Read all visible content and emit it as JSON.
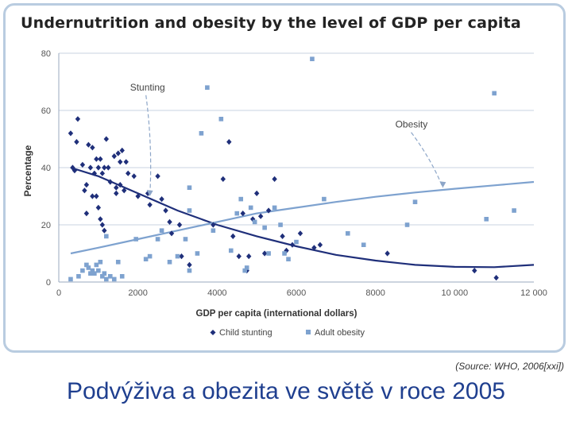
{
  "page": {
    "source_text": "(Source: WHO, 2006[xxi])",
    "caption": "Podvýživa a obezita ve světě v roce 2005"
  },
  "chart_data": {
    "type": "scatter",
    "title": "Undernutrition and obesity by the level of GDP per capita",
    "xlabel": "GDP per capita (international dollars)",
    "ylabel": "Percentage",
    "xlim": [
      0,
      12000
    ],
    "ylim": [
      0,
      80
    ],
    "x_ticks": [
      0,
      2000,
      4000,
      6000,
      8000,
      10000,
      12000
    ],
    "x_tick_labels": [
      "0",
      "2000",
      "4000",
      "6000",
      "8000",
      "10 000",
      "12 000"
    ],
    "y_ticks": [
      0,
      20,
      40,
      60,
      80
    ],
    "y_tick_labels": [
      "0",
      "20",
      "40",
      "60",
      "80"
    ],
    "grid": "horizontal",
    "legend_position": "bottom",
    "colors": {
      "stunting": "#1f2f7a",
      "obesity": "#7ea2cf",
      "grid": "#c8d3e2",
      "axis": "#9aa8bf"
    },
    "annotations": [
      {
        "text": "Stunting",
        "label_at": [
          1800,
          67
        ],
        "arrow_to": [
          2300,
          30
        ]
      },
      {
        "text": "Obesity",
        "label_at": [
          8500,
          54
        ],
        "arrow_to": [
          9700,
          33
        ]
      }
    ],
    "series": [
      {
        "name": "Child stunting",
        "marker": "diamond",
        "points": [
          [
            300,
            52
          ],
          [
            480,
            57
          ],
          [
            450,
            49
          ],
          [
            350,
            40
          ],
          [
            400,
            39
          ],
          [
            600,
            41
          ],
          [
            700,
            34
          ],
          [
            650,
            32
          ],
          [
            800,
            40
          ],
          [
            750,
            48
          ],
          [
            850,
            47
          ],
          [
            900,
            38
          ],
          [
            950,
            43
          ],
          [
            1000,
            40
          ],
          [
            1050,
            43
          ],
          [
            1100,
            38
          ],
          [
            1150,
            40
          ],
          [
            1250,
            40
          ],
          [
            1200,
            50
          ],
          [
            1300,
            35
          ],
          [
            700,
            24
          ],
          [
            850,
            30
          ],
          [
            950,
            30
          ],
          [
            1000,
            26
          ],
          [
            1050,
            22
          ],
          [
            1100,
            20
          ],
          [
            1150,
            18
          ],
          [
            1400,
            44
          ],
          [
            1500,
            45
          ],
          [
            1550,
            42
          ],
          [
            1600,
            46
          ],
          [
            1700,
            42
          ],
          [
            1450,
            33
          ],
          [
            1550,
            34
          ],
          [
            1650,
            32
          ],
          [
            1750,
            38
          ],
          [
            1450,
            31
          ],
          [
            1900,
            37
          ],
          [
            2000,
            30
          ],
          [
            2250,
            31
          ],
          [
            2300,
            27
          ],
          [
            2500,
            37
          ],
          [
            2600,
            29
          ],
          [
            2700,
            25
          ],
          [
            2800,
            21
          ],
          [
            2850,
            17
          ],
          [
            3050,
            20
          ],
          [
            3100,
            9
          ],
          [
            3300,
            6
          ],
          [
            3900,
            20
          ],
          [
            4150,
            36
          ],
          [
            4300,
            49
          ],
          [
            4400,
            16
          ],
          [
            4550,
            9
          ],
          [
            4650,
            24
          ],
          [
            4750,
            4
          ],
          [
            4800,
            9
          ],
          [
            4900,
            22
          ],
          [
            5000,
            31
          ],
          [
            5100,
            23
          ],
          [
            5200,
            10
          ],
          [
            5300,
            25
          ],
          [
            5450,
            36
          ],
          [
            5650,
            16
          ],
          [
            5750,
            11
          ],
          [
            5900,
            13
          ],
          [
            6100,
            17
          ],
          [
            6450,
            12
          ],
          [
            6600,
            13
          ],
          [
            8300,
            10
          ],
          [
            10500,
            4
          ],
          [
            11050,
            1.5
          ]
        ]
      },
      {
        "name": "Adult obesity",
        "marker": "square",
        "points": [
          [
            300,
            1
          ],
          [
            500,
            2
          ],
          [
            600,
            4
          ],
          [
            700,
            6
          ],
          [
            750,
            5
          ],
          [
            800,
            3
          ],
          [
            850,
            4
          ],
          [
            900,
            3
          ],
          [
            950,
            6
          ],
          [
            1000,
            4
          ],
          [
            1050,
            7
          ],
          [
            1100,
            2
          ],
          [
            1150,
            3
          ],
          [
            1200,
            1
          ],
          [
            1300,
            2
          ],
          [
            1400,
            1
          ],
          [
            1500,
            7
          ],
          [
            1600,
            2
          ],
          [
            1200,
            16
          ],
          [
            1950,
            15
          ],
          [
            2200,
            8
          ],
          [
            2300,
            9
          ],
          [
            2500,
            15
          ],
          [
            2600,
            18
          ],
          [
            2800,
            7
          ],
          [
            3000,
            9
          ],
          [
            3300,
            4
          ],
          [
            3300,
            33
          ],
          [
            3300,
            25
          ],
          [
            3200,
            15
          ],
          [
            3500,
            10
          ],
          [
            3600,
            52
          ],
          [
            3750,
            68
          ],
          [
            3900,
            18
          ],
          [
            4100,
            57
          ],
          [
            4350,
            11
          ],
          [
            4500,
            24
          ],
          [
            4600,
            29
          ],
          [
            4700,
            4
          ],
          [
            4750,
            5
          ],
          [
            4850,
            26
          ],
          [
            4950,
            21
          ],
          [
            5200,
            19
          ],
          [
            5300,
            10
          ],
          [
            5450,
            26
          ],
          [
            5600,
            20
          ],
          [
            5700,
            10
          ],
          [
            5800,
            8
          ],
          [
            6000,
            14
          ],
          [
            6400,
            78
          ],
          [
            6700,
            29
          ],
          [
            7300,
            17
          ],
          [
            7700,
            13
          ],
          [
            8800,
            20
          ],
          [
            9000,
            28
          ],
          [
            10800,
            22
          ],
          [
            11000,
            66
          ],
          [
            11500,
            25
          ]
        ]
      }
    ],
    "trendlines": [
      {
        "series": "Child stunting",
        "points": [
          [
            300,
            40
          ],
          [
            1000,
            37
          ],
          [
            2000,
            31
          ],
          [
            3000,
            25
          ],
          [
            4000,
            20
          ],
          [
            5000,
            16
          ],
          [
            6000,
            12.5
          ],
          [
            7000,
            9.5
          ],
          [
            8000,
            7.5
          ],
          [
            9000,
            6
          ],
          [
            10000,
            5.3
          ],
          [
            11000,
            5.2
          ],
          [
            12000,
            6
          ]
        ]
      },
      {
        "series": "Adult obesity",
        "points": [
          [
            300,
            10
          ],
          [
            1000,
            12
          ],
          [
            2000,
            15
          ],
          [
            3000,
            18
          ],
          [
            4000,
            21
          ],
          [
            5000,
            24
          ],
          [
            6000,
            26
          ],
          [
            7000,
            28
          ],
          [
            8000,
            29.8
          ],
          [
            9000,
            31.3
          ],
          [
            10000,
            32.6
          ],
          [
            11000,
            33.8
          ],
          [
            12000,
            35
          ]
        ]
      }
    ]
  }
}
